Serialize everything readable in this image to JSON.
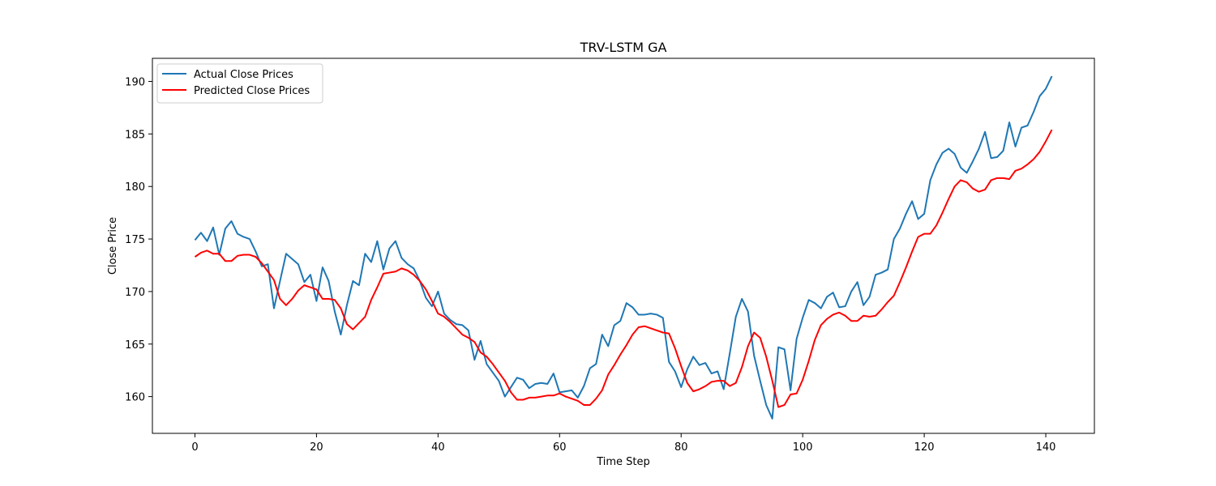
{
  "chart_data": {
    "type": "line",
    "title": "TRV-LSTM GA",
    "xlabel": "Time Step",
    "ylabel": "Close Price",
    "xlim": [
      -7,
      148
    ],
    "ylim": [
      156.5,
      192.2
    ],
    "xticks": [
      0,
      20,
      40,
      60,
      80,
      100,
      120,
      140
    ],
    "yticks": [
      160,
      165,
      170,
      175,
      180,
      185,
      190
    ],
    "grid": false,
    "legend_position": "top-left",
    "series": [
      {
        "name": "Actual Close Prices",
        "color": "#1f77b4",
        "values": [
          174.9,
          175.6,
          174.8,
          176.1,
          173.5,
          176.0,
          176.7,
          175.5,
          175.2,
          175.0,
          173.8,
          172.4,
          172.6,
          168.4,
          171.0,
          173.6,
          173.1,
          172.6,
          170.9,
          171.6,
          169.1,
          172.3,
          171.0,
          168.1,
          165.9,
          168.7,
          171.0,
          170.6,
          173.6,
          172.8,
          174.8,
          172.1,
          174.1,
          174.8,
          173.2,
          172.6,
          172.2,
          171.0,
          169.4,
          168.6,
          170.0,
          167.9,
          167.3,
          166.9,
          166.8,
          166.3,
          163.5,
          165.3,
          163.1,
          162.3,
          161.5,
          160.0,
          160.9,
          161.8,
          161.6,
          160.8,
          161.2,
          161.3,
          161.2,
          162.2,
          160.4,
          160.5,
          160.6,
          159.9,
          161.0,
          162.7,
          163.1,
          165.9,
          164.8,
          166.8,
          167.2,
          168.9,
          168.5,
          167.8,
          167.8,
          167.9,
          167.8,
          167.5,
          163.3,
          162.4,
          160.9,
          162.6,
          163.8,
          163.0,
          163.2,
          162.2,
          162.4,
          160.7,
          164.1,
          167.6,
          169.3,
          168.1,
          163.9,
          161.5,
          159.2,
          157.9,
          164.7,
          164.5,
          160.6,
          165.5,
          167.5,
          169.2,
          168.9,
          168.4,
          169.5,
          169.9,
          168.5,
          168.6,
          170.0,
          170.9,
          168.7,
          169.5,
          171.6,
          171.8,
          172.1,
          175.0,
          176.0,
          177.4,
          178.6,
          176.9,
          177.4,
          180.6,
          182.1,
          183.2,
          183.6,
          183.1,
          181.8,
          181.3,
          182.4,
          183.6,
          185.2,
          182.7,
          182.8,
          183.4,
          186.1,
          183.8,
          185.6,
          185.8,
          187.1,
          188.6,
          189.3,
          190.5
        ]
      },
      {
        "name": "Predicted Close Prices",
        "color": "#ff0000",
        "values": [
          173.3,
          173.7,
          173.9,
          173.6,
          173.6,
          172.9,
          172.9,
          173.4,
          173.5,
          173.5,
          173.3,
          172.7,
          171.9,
          171.1,
          169.3,
          168.7,
          169.3,
          170.1,
          170.6,
          170.4,
          170.2,
          169.3,
          169.3,
          169.2,
          168.4,
          166.9,
          166.4,
          167.0,
          167.6,
          169.2,
          170.4,
          171.7,
          171.8,
          171.9,
          172.2,
          172.0,
          171.6,
          171.0,
          170.2,
          169.1,
          167.9,
          167.6,
          167.1,
          166.5,
          165.9,
          165.6,
          165.2,
          164.2,
          163.8,
          163.1,
          162.3,
          161.5,
          160.4,
          159.7,
          159.7,
          159.9,
          159.9,
          160.0,
          160.1,
          160.1,
          160.3,
          160.0,
          159.8,
          159.6,
          159.2,
          159.2,
          159.8,
          160.6,
          162.1,
          163.0,
          164.0,
          164.9,
          165.9,
          166.6,
          166.7,
          166.5,
          166.3,
          166.1,
          166.0,
          164.6,
          162.9,
          161.3,
          160.5,
          160.7,
          161.0,
          161.4,
          161.5,
          161.5,
          161.0,
          161.3,
          162.8,
          164.8,
          166.1,
          165.6,
          163.8,
          161.5,
          159.0,
          159.2,
          160.2,
          160.3,
          161.6,
          163.4,
          165.4,
          166.8,
          167.4,
          167.8,
          168.0,
          167.7,
          167.2,
          167.2,
          167.7,
          167.6,
          167.7,
          168.3,
          169.0,
          169.6,
          170.9,
          172.3,
          173.8,
          175.2,
          175.5,
          175.5,
          176.3,
          177.5,
          178.8,
          180.0,
          180.6,
          180.4,
          179.8,
          179.5,
          179.7,
          180.6,
          180.8,
          180.8,
          180.7,
          181.5,
          181.7,
          182.1,
          182.6,
          183.3,
          184.3,
          185.4
        ]
      }
    ]
  }
}
